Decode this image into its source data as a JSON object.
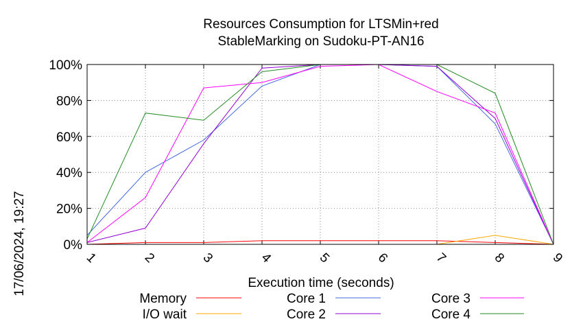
{
  "chart_data": {
    "type": "line",
    "title": "Resources Consumption for LTSMin+red",
    "subtitle": "StableMarking on Sudoku-PT-AN16",
    "xlabel": "Execution time (seconds)",
    "ylabel": "",
    "side_label": "17/06/2024, 19:27",
    "x": [
      1,
      2,
      3,
      4,
      5,
      6,
      7,
      8,
      9
    ],
    "xlim": [
      1,
      9
    ],
    "ylim": [
      0,
      100
    ],
    "x_ticks": [
      "1",
      "2",
      "3",
      "4",
      "5",
      "6",
      "7",
      "8",
      "9"
    ],
    "y_ticks": [
      {
        "value": 0,
        "label": "0%"
      },
      {
        "value": 20,
        "label": "20%"
      },
      {
        "value": 40,
        "label": "40%"
      },
      {
        "value": 60,
        "label": "60%"
      },
      {
        "value": 80,
        "label": "80%"
      },
      {
        "value": 100,
        "label": "100%"
      }
    ],
    "grid": true,
    "legend_position": "bottom",
    "series": [
      {
        "name": "Memory",
        "color": "#ff0000",
        "values": [
          0,
          1,
          1,
          2,
          2,
          2,
          2,
          1,
          0
        ]
      },
      {
        "name": "I/O wait",
        "color": "#ffa500",
        "values": [
          0,
          0,
          0,
          0,
          0,
          0,
          0,
          5,
          0
        ]
      },
      {
        "name": "Core 1",
        "color": "#4169e1",
        "values": [
          5,
          40,
          58,
          88,
          100,
          100,
          99,
          67,
          0
        ]
      },
      {
        "name": "Core 2",
        "color": "#9400d3",
        "values": [
          1,
          9,
          56,
          98,
          100,
          100,
          99,
          70,
          0
        ]
      },
      {
        "name": "Core 3",
        "color": "#ff00ff",
        "values": [
          1,
          26,
          87,
          90,
          99,
          100,
          85,
          73,
          0
        ]
      },
      {
        "name": "Core 4",
        "color": "#228b22",
        "values": [
          3,
          73,
          69,
          96,
          100,
          100,
          100,
          84,
          0
        ]
      }
    ]
  }
}
